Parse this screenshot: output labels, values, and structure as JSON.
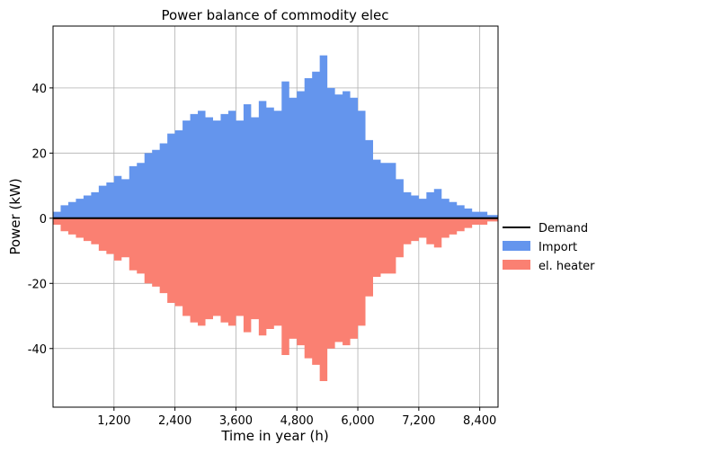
{
  "chart_data": {
    "type": "area",
    "title": "Power balance of commodity elec",
    "xlabel": "Time in year (h)",
    "ylabel": "Power (kW)",
    "xlim": [
      0,
      8760
    ],
    "ylim": [
      -58,
      59
    ],
    "x_ticks": [
      1200,
      2400,
      3600,
      4800,
      6000,
      7200,
      8400
    ],
    "x_tick_labels": [
      "1,200",
      "2,400",
      "3,600",
      "4,800",
      "6,000",
      "7,200",
      "8,400"
    ],
    "y_ticks": [
      -40,
      -20,
      0,
      20,
      40
    ],
    "y_tick_labels": [
      "-40",
      "-20",
      "0",
      "20",
      "40"
    ],
    "grid": true,
    "legend_position": "outside-right",
    "colors": {
      "demand": "#000000",
      "import": "#6495ed",
      "heater": "#fa8072",
      "grid": "#b0b0b0"
    },
    "x": [
      0,
      150,
      300,
      450,
      600,
      750,
      900,
      1050,
      1200,
      1350,
      1500,
      1650,
      1800,
      1950,
      2100,
      2250,
      2400,
      2550,
      2700,
      2850,
      3000,
      3150,
      3300,
      3450,
      3600,
      3750,
      3900,
      4050,
      4200,
      4350,
      4500,
      4650,
      4800,
      4950,
      5100,
      5250,
      5400,
      5550,
      5700,
      5850,
      6000,
      6150,
      6300,
      6450,
      6600,
      6750,
      6900,
      7050,
      7200,
      7350,
      7500,
      7650,
      7800,
      7950,
      8100,
      8250,
      8400,
      8550,
      8760
    ],
    "series": [
      {
        "name": "Demand",
        "values": [
          0,
          0,
          0,
          0,
          0,
          0,
          0,
          0,
          0,
          0,
          0,
          0,
          0,
          0,
          0,
          0,
          0,
          0,
          0,
          0,
          0,
          0,
          0,
          0,
          0,
          0,
          0,
          0,
          0,
          0,
          0,
          0,
          0,
          0,
          0,
          0,
          0,
          0,
          0,
          0,
          0,
          0,
          0,
          0,
          0,
          0,
          0,
          0,
          0,
          0,
          0,
          0,
          0,
          0,
          0,
          0,
          0,
          0,
          0
        ]
      },
      {
        "name": "Import",
        "values": [
          2,
          4,
          5,
          6,
          7,
          8,
          10,
          11,
          13,
          12,
          16,
          17,
          20,
          21,
          23,
          26,
          27,
          30,
          32,
          33,
          31,
          30,
          32,
          33,
          30,
          35,
          31,
          36,
          34,
          33,
          42,
          37,
          39,
          43,
          45,
          50,
          40,
          38,
          39,
          37,
          33,
          24,
          18,
          17,
          17,
          12,
          8,
          7,
          6,
          8,
          9,
          6,
          5,
          4,
          3,
          2,
          2,
          1,
          1
        ]
      },
      {
        "name": "el. heater",
        "values": [
          -2,
          -4,
          -5,
          -6,
          -7,
          -8,
          -10,
          -11,
          -13,
          -12,
          -16,
          -17,
          -20,
          -21,
          -23,
          -26,
          -27,
          -30,
          -32,
          -33,
          -31,
          -30,
          -32,
          -33,
          -30,
          -35,
          -31,
          -36,
          -34,
          -33,
          -42,
          -37,
          -39,
          -43,
          -45,
          -50,
          -40,
          -38,
          -39,
          -37,
          -33,
          -24,
          -18,
          -17,
          -17,
          -12,
          -8,
          -7,
          -6,
          -8,
          -9,
          -6,
          -5,
          -4,
          -3,
          -2,
          -2,
          -1,
          -1
        ]
      }
    ]
  }
}
